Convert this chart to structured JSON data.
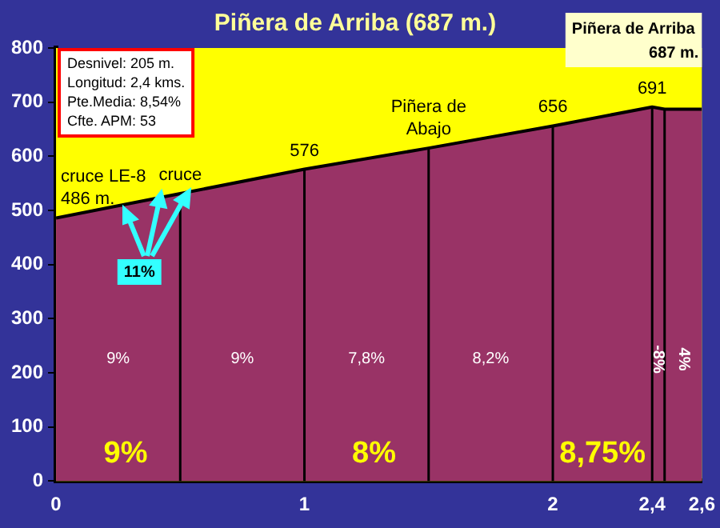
{
  "chart_data": {
    "type": "area",
    "title": "Piñera de Arriba (687 m.)",
    "x": [
      0,
      0.5,
      1,
      1.5,
      2,
      2.4,
      2.45,
      2.6
    ],
    "series": [
      {
        "color": "#993366",
        "values": [
          486,
          531,
          576,
          615,
          656,
          691,
          687,
          687
        ]
      }
    ],
    "xlim": [
      0,
      2.6
    ],
    "xticks": [
      0,
      1,
      2,
      {
        "value": 2.4,
        "label": "2,4"
      },
      {
        "value": 2.6,
        "label": "2,6"
      }
    ],
    "ylim": [
      0,
      800
    ],
    "yticks": [
      0,
      100,
      200,
      300,
      400,
      500,
      600,
      700,
      800
    ],
    "grid": false,
    "legend": false,
    "ref_lines": [
      {
        "axis": "x",
        "value": 0.5
      },
      {
        "axis": "x",
        "value": 1
      },
      {
        "axis": "x",
        "value": 1.5
      },
      {
        "axis": "x",
        "value": 2
      },
      {
        "axis": "x",
        "value": 2.4
      },
      {
        "axis": "x",
        "value": 2.45
      }
    ],
    "annotations": [
      {
        "text": "cruce LE-8\n486 m.",
        "x": 0,
        "y": 486
      },
      {
        "text": "cruce",
        "x": 0.5,
        "y": 531
      },
      {
        "text": "576",
        "x": 1,
        "y": 576
      },
      {
        "text": "Piñera de\nAbajo",
        "x": 1.5,
        "y": 615
      },
      {
        "text": "656",
        "x": 2,
        "y": 656
      },
      {
        "text": "691",
        "x": 2.4,
        "y": 691
      },
      {
        "text": "11%",
        "x": 0.4,
        "y": 522
      },
      "9%",
      "9%",
      "7,8%",
      "8,2%",
      "-8%",
      "4%",
      "9%",
      "8%",
      "8,75%",
      "Desnivel: 205 m.",
      "Longitud: 2,4 kms.",
      "Pte.Media: 8,54%",
      "Cfte. APM: 53",
      "Piñera de Arriba\n687 m."
    ]
  }
}
